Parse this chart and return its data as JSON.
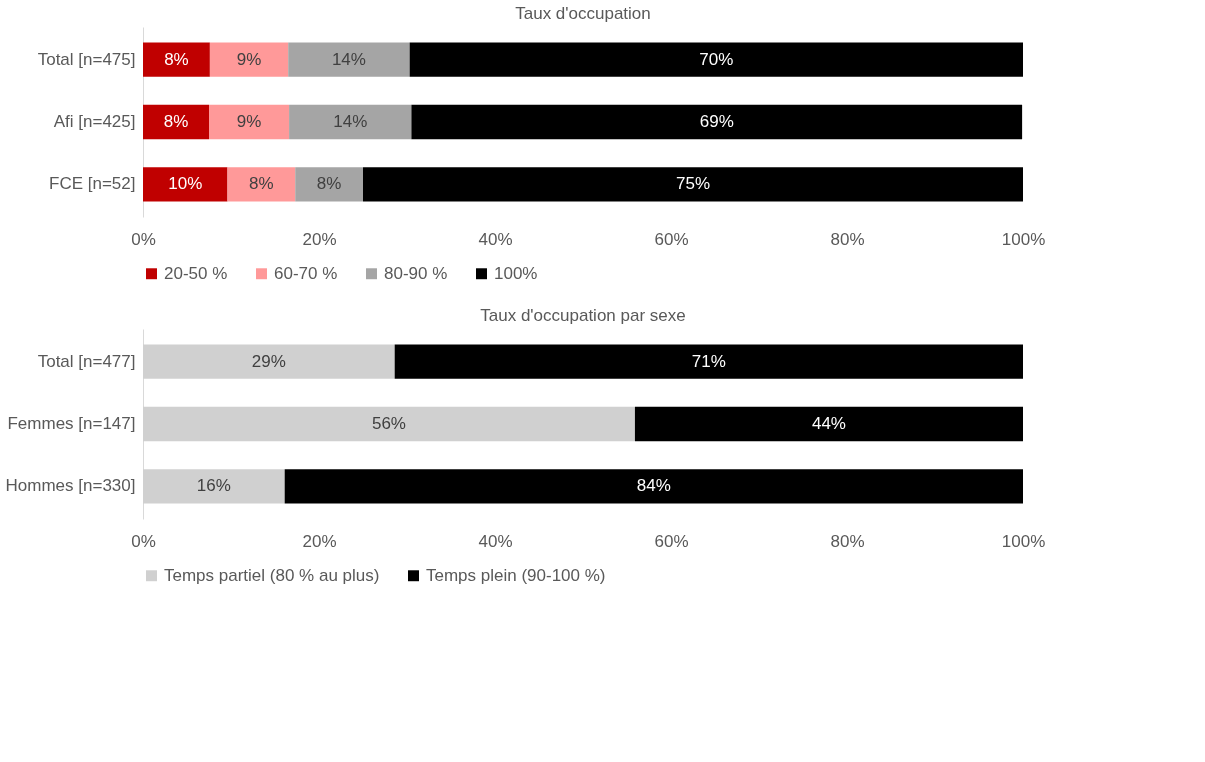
{
  "chart_data": [
    {
      "type": "bar",
      "orientation": "horizontal",
      "stacked": true,
      "title": "Taux d'occupation",
      "categories": [
        "Total [n=475]",
        "Afi [n=425]",
        "FCE [n=52]"
      ],
      "series": [
        {
          "name": "20-50 %",
          "color": "#c00000",
          "values": [
            7.6,
            7.5,
            9.6
          ],
          "value_labels": [
            "8%",
            "8%",
            "10%"
          ]
        },
        {
          "name": "60-70 %",
          "color": "#ff9999",
          "values": [
            8.9,
            9.1,
            7.7
          ],
          "value_labels": [
            "9%",
            "9%",
            "8%"
          ]
        },
        {
          "name": "80-90 %",
          "color": "#a5a5a5",
          "values": [
            13.8,
            13.9,
            7.7
          ],
          "value_labels": [
            "14%",
            "14%",
            "8%"
          ]
        },
        {
          "name": "100%",
          "color": "#000000",
          "values": [
            69.7,
            69.4,
            75.0
          ],
          "value_labels": [
            "70%",
            "69%",
            "75%"
          ]
        }
      ],
      "xlim": [
        0,
        100
      ],
      "xticks": [
        {
          "value": 0,
          "label": "0%"
        },
        {
          "value": 20,
          "label": "20%"
        },
        {
          "value": 40,
          "label": "40%"
        },
        {
          "value": 60,
          "label": "60%"
        },
        {
          "value": 80,
          "label": "80%"
        },
        {
          "value": 100,
          "label": "100%"
        }
      ],
      "grid": false,
      "legend": "bottom"
    },
    {
      "type": "bar",
      "orientation": "horizontal",
      "stacked": true,
      "title": "Taux d'occupation par sexe",
      "categories": [
        "Total [n=477]",
        "Femmes [n=147]",
        "Hommes [n=330]"
      ],
      "series": [
        {
          "name": "Temps partiel (80 % au plus)",
          "color": "#d0d0d0",
          "values": [
            28.6,
            55.9,
            16.1
          ],
          "value_labels": [
            "29%",
            "56%",
            "16%"
          ]
        },
        {
          "name": "Temps plein (90-100 %)",
          "color": "#000000",
          "values": [
            71.4,
            44.1,
            83.9
          ],
          "value_labels": [
            "71%",
            "44%",
            "84%"
          ]
        }
      ],
      "xlim": [
        0,
        100
      ],
      "xticks": [
        {
          "value": 0,
          "label": "0%"
        },
        {
          "value": 20,
          "label": "20%"
        },
        {
          "value": 40,
          "label": "40%"
        },
        {
          "value": 60,
          "label": "60%"
        },
        {
          "value": 80,
          "label": "80%"
        },
        {
          "value": 100,
          "label": "100%"
        }
      ],
      "grid": false,
      "legend": "bottom"
    }
  ]
}
